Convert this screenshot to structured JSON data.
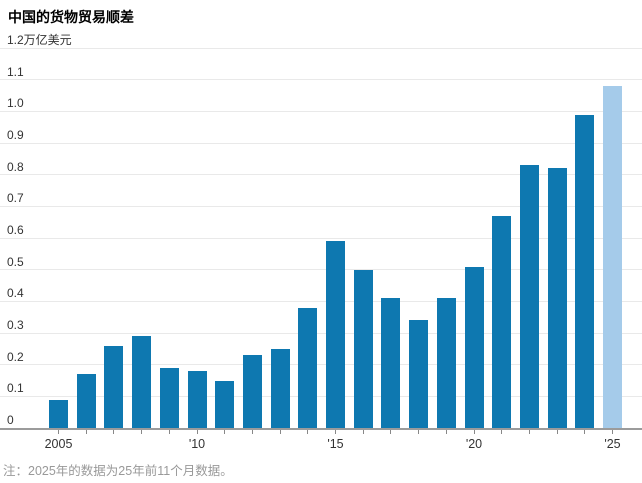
{
  "title": "中国的货物贸易顺差",
  "footnote": "注：2025年的数据为25年前11个月数据。",
  "chart_data": {
    "type": "bar",
    "title": "中国的货物贸易顺差",
    "unit_label": "万亿美元",
    "categories": [
      2005,
      2006,
      2007,
      2008,
      2009,
      2010,
      2011,
      2012,
      2013,
      2014,
      2015,
      2016,
      2017,
      2018,
      2019,
      2020,
      2021,
      2022,
      2023,
      2024,
      2025
    ],
    "values": [
      0.09,
      0.17,
      0.26,
      0.29,
      0.19,
      0.18,
      0.15,
      0.23,
      0.25,
      0.38,
      0.59,
      0.5,
      0.41,
      0.34,
      0.41,
      0.51,
      0.67,
      0.83,
      0.82,
      0.99,
      1.08
    ],
    "ylim": [
      0,
      1.2
    ],
    "ytick_step": 0.1,
    "x_tick_labels": {
      "0": "2005",
      "5": "'10",
      "10": "'15",
      "15": "'20",
      "20": "'25"
    },
    "grid": true,
    "legend": "none",
    "bar_color": "#0e78b0",
    "highlight_last_bar": true,
    "highlight_color": "#a5cbea",
    "note": "2025年的数据为25年前11个月数据。"
  }
}
